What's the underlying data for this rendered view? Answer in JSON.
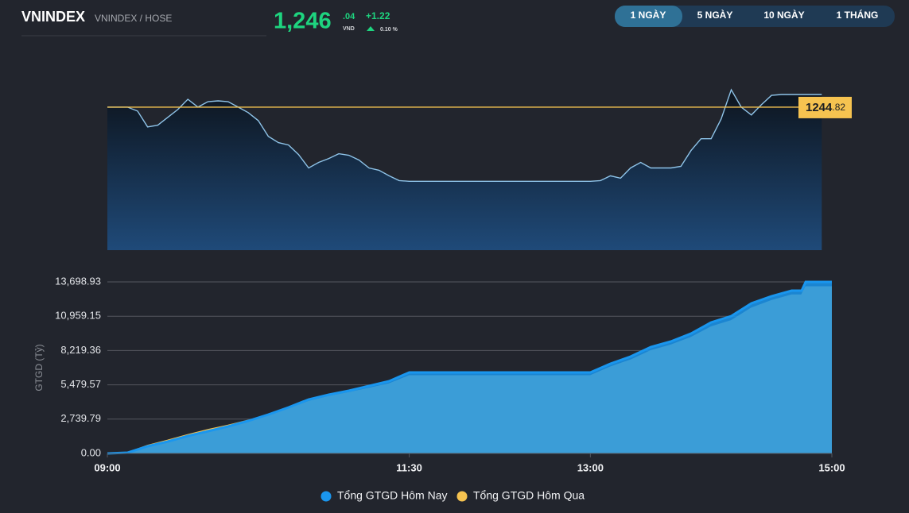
{
  "header": {
    "title": "VNINDEX",
    "subtitle": "VNINDEX / HOSE",
    "price": {
      "int": "1,246",
      "dec": ".04",
      "unit": "VND"
    },
    "change": "+1.22",
    "change_pct": "0.10 %"
  },
  "tabs": [
    "1 NGÀY",
    "5 NGÀY",
    "10 NGÀY",
    "1 THÁNG"
  ],
  "chart_data": [
    {
      "type": "line",
      "color": "#8ec3e8",
      "x": [
        "09:00",
        "09:05",
        "09:10",
        "09:15",
        "09:20",
        "09:25",
        "09:30",
        "09:35",
        "09:40",
        "09:45",
        "09:50",
        "09:55",
        "10:00",
        "10:05",
        "10:10",
        "10:15",
        "10:20",
        "10:25",
        "10:30",
        "10:35",
        "10:40",
        "10:45",
        "10:50",
        "10:55",
        "11:00",
        "11:05",
        "11:10",
        "11:15",
        "11:20",
        "11:25",
        "11:30",
        "13:00",
        "13:05",
        "13:10",
        "13:15",
        "13:20",
        "13:25",
        "13:30",
        "13:35",
        "13:40",
        "13:45",
        "13:50",
        "13:55",
        "14:00",
        "14:05",
        "14:10",
        "14:15",
        "14:20",
        "14:25",
        "14:30",
        "14:35",
        "14:40",
        "14:45",
        "14:50",
        "14:55"
      ],
      "values": [
        1244.82,
        1244.82,
        1244.82,
        1244.44,
        1242.91,
        1243.07,
        1243.83,
        1244.59,
        1245.58,
        1244.82,
        1245.35,
        1245.43,
        1245.35,
        1244.82,
        1244.29,
        1243.52,
        1242.0,
        1241.39,
        1241.16,
        1240.24,
        1238.94,
        1239.48,
        1239.86,
        1240.32,
        1240.17,
        1239.71,
        1238.94,
        1238.72,
        1238.18,
        1237.72,
        1237.65,
        1237.65,
        1237.72,
        1238.18,
        1237.95,
        1238.94,
        1239.48,
        1238.94,
        1238.94,
        1238.94,
        1239.1,
        1240.62,
        1241.77,
        1241.77,
        1243.68,
        1246.5,
        1244.82,
        1244.06,
        1245.05,
        1245.96,
        1246.04,
        1246.04,
        1246.04,
        1246.04,
        1246.04
      ],
      "xlim": [
        "09:00",
        "15:00"
      ],
      "ylim": [
        1231,
        1247.5
      ],
      "reference": 1244.82,
      "reference_label": [
        "1244",
        ".82"
      ],
      "reference_color": "#f6c350"
    },
    {
      "type": "area",
      "y_label": "GTGD (Tỷ)",
      "grid": true,
      "x": [
        "09:00",
        "09:10",
        "09:20",
        "09:30",
        "09:40",
        "09:50",
        "10:00",
        "10:10",
        "10:20",
        "10:30",
        "10:40",
        "10:50",
        "11:00",
        "11:10",
        "11:20",
        "11:30",
        "13:00",
        "13:10",
        "13:20",
        "13:30",
        "13:40",
        "13:50",
        "14:00",
        "14:10",
        "14:20",
        "14:30",
        "14:40",
        "14:45",
        "14:47",
        "15:00"
      ],
      "series": [
        {
          "name": "Tổng GTGD Hôm Nay",
          "color": "#1a96ee",
          "values": [
            0,
            63,
            571,
            951,
            1395,
            1776,
            2156,
            2600,
            3108,
            3678,
            4313,
            4693,
            5010,
            5391,
            5771,
            6469,
            6469,
            7166,
            7737,
            8498,
            8942,
            9576,
            10464,
            10972,
            11986,
            12557,
            13001,
            13001,
            13698.93,
            13698.93
          ]
        },
        {
          "name": "Tổng GTGD Hôm Qua",
          "color": "#f6c350",
          "values": [
            0,
            63,
            650,
            1050,
            1500,
            1900,
            2250,
            2650,
            3050,
            3550,
            4150,
            4550,
            4850,
            5200,
            5550,
            6200,
            6200,
            6900,
            7450,
            8200,
            8650,
            9250,
            10100,
            10600,
            11600,
            12200,
            12650,
            12650,
            13300,
            13300
          ]
        }
      ],
      "xlim": [
        "09:00",
        "15:00"
      ],
      "xticks": [
        "09:00",
        "11:30",
        "13:00",
        "15:00"
      ],
      "ylim": [
        0,
        13698.93
      ],
      "yticks": [
        {
          "value": 0,
          "label": "0.00"
        },
        {
          "value": 2739.79,
          "label": "2,739.79"
        },
        {
          "value": 5479.57,
          "label": "5,479.57"
        },
        {
          "value": 8219.36,
          "label": "8,219.36"
        },
        {
          "value": 10959.15,
          "label": "10,959.15"
        },
        {
          "value": 13698.93,
          "label": "13,698.93"
        }
      ]
    }
  ]
}
